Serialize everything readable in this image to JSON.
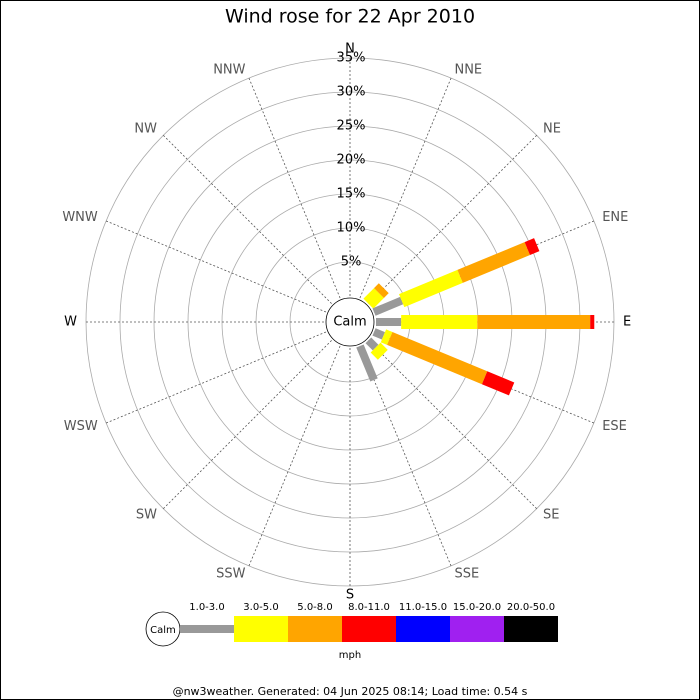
{
  "chart_data": {
    "type": "windrose",
    "title": "Wind rose for 22 Apr 2010",
    "categories": [
      "N",
      "NNE",
      "NE",
      "ENE",
      "E",
      "ESE",
      "SE",
      "SSE",
      "S",
      "SSW",
      "SW",
      "WSW",
      "W",
      "WNW",
      "NW",
      "NNW"
    ],
    "calm_label": "Calm",
    "unit_label": "mph",
    "footer": "@nw3weather. Generated: 04 Jun 2025 08:14; Load time: 0.54 s",
    "rlim": [
      0,
      35
    ],
    "rticks": [
      {
        "value": 5,
        "label": "5%"
      },
      {
        "value": 10,
        "label": "10%"
      },
      {
        "value": 15,
        "label": "15%"
      },
      {
        "value": 20,
        "label": "20%"
      },
      {
        "value": 25,
        "label": "25%"
      },
      {
        "value": 30,
        "label": "30%"
      },
      {
        "value": 35,
        "label": "35%"
      }
    ],
    "series": [
      {
        "name": "1.0-3.0",
        "color": "#999999",
        "values": [
          0,
          0,
          0,
          4.4,
          3.7,
          1.5,
          1.5,
          5.4,
          0,
          0,
          0,
          0,
          0,
          0,
          0,
          0
        ]
      },
      {
        "name": "3.0-5.0",
        "color": "#ffff00",
        "values": [
          0,
          0,
          2.2,
          9.3,
          11.2,
          1.0,
          1.5,
          0,
          0,
          0,
          0,
          0,
          0,
          0,
          0,
          0
        ]
      },
      {
        "name": "5.0-8.0",
        "color": "#ffa500",
        "values": [
          0,
          0,
          1.0,
          10.7,
          16.6,
          15.1,
          0,
          0,
          0,
          0,
          0,
          0,
          0,
          0,
          0,
          0
        ]
      },
      {
        "name": "8.0-11.0",
        "color": "#ff0000",
        "values": [
          0,
          0,
          0,
          1.5,
          0.6,
          4.3,
          0,
          0,
          0,
          0,
          0,
          0,
          0,
          0,
          0,
          0
        ]
      },
      {
        "name": "11.0-15.0",
        "color": "#0000ff",
        "values": [
          0,
          0,
          0,
          0,
          0,
          0,
          0,
          0,
          0,
          0,
          0,
          0,
          0,
          0,
          0,
          0
        ]
      },
      {
        "name": "15.0-20.0",
        "color": "#a020f0",
        "values": [
          0,
          0,
          0,
          0,
          0,
          0,
          0,
          0,
          0,
          0,
          0,
          0,
          0,
          0,
          0,
          0
        ]
      },
      {
        "name": "20.0-50.0",
        "color": "#000000",
        "values": [
          0,
          0,
          0,
          0,
          0,
          0,
          0,
          0,
          0,
          0,
          0,
          0,
          0,
          0,
          0,
          0
        ]
      }
    ]
  }
}
